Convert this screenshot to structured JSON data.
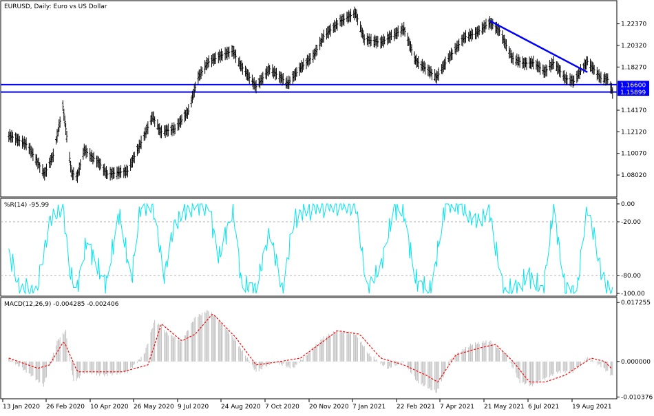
{
  "chart_data": [
    {
      "type": "ohlc",
      "title": "EURUSD, Daily:  Euro vs US Dollar",
      "symbol": "EURUSD",
      "timeframe": "Daily",
      "ylim": [
        1.06,
        1.245
      ],
      "y_ticks": [
        "1.22370",
        "1.20320",
        "1.18270",
        "1.14170",
        "1.12120",
        "1.10070",
        "1.08020"
      ],
      "price_levels": [
        {
          "value": 1.166,
          "label": "1.16600",
          "color": "#0000ff"
        },
        {
          "value": 1.15899,
          "label": "1.15899",
          "color": "#0000ff"
        }
      ],
      "trendline": {
        "from": {
          "x": "2021-05-25",
          "y": 1.2265
        },
        "to": {
          "x": "2021-09-03",
          "y": 1.1778
        },
        "color": "#0000ff"
      },
      "close_path": [
        {
          "x": "2020-01-13",
          "y": 1.118
        },
        {
          "x": "2020-02-01",
          "y": 1.109
        },
        {
          "x": "2020-02-19",
          "y": 1.081
        },
        {
          "x": "2020-02-28",
          "y": 1.099
        },
        {
          "x": "2020-03-09",
          "y": 1.145
        },
        {
          "x": "2020-03-18",
          "y": 1.082
        },
        {
          "x": "2020-03-24",
          "y": 1.079
        },
        {
          "x": "2020-03-31",
          "y": 1.104
        },
        {
          "x": "2020-04-15",
          "y": 1.092
        },
        {
          "x": "2020-04-24",
          "y": 1.081
        },
        {
          "x": "2020-05-15",
          "y": 1.084
        },
        {
          "x": "2020-06-02",
          "y": 1.119
        },
        {
          "x": "2020-06-10",
          "y": 1.136
        },
        {
          "x": "2020-06-18",
          "y": 1.121
        },
        {
          "x": "2020-07-03",
          "y": 1.124
        },
        {
          "x": "2020-07-17",
          "y": 1.141
        },
        {
          "x": "2020-07-27",
          "y": 1.173
        },
        {
          "x": "2020-08-06",
          "y": 1.187
        },
        {
          "x": "2020-08-18",
          "y": 1.193
        },
        {
          "x": "2020-09-01",
          "y": 1.198
        },
        {
          "x": "2020-09-10",
          "y": 1.183
        },
        {
          "x": "2020-09-25",
          "y": 1.164
        },
        {
          "x": "2020-10-09",
          "y": 1.181
        },
        {
          "x": "2020-10-28",
          "y": 1.167
        },
        {
          "x": "2020-11-10",
          "y": 1.182
        },
        {
          "x": "2020-11-24",
          "y": 1.194
        },
        {
          "x": "2020-12-04",
          "y": 1.212
        },
        {
          "x": "2020-12-21",
          "y": 1.226
        },
        {
          "x": "2021-01-06",
          "y": 1.234
        },
        {
          "x": "2021-01-15",
          "y": 1.209
        },
        {
          "x": "2021-02-01",
          "y": 1.206
        },
        {
          "x": "2021-02-12",
          "y": 1.212
        },
        {
          "x": "2021-02-25",
          "y": 1.219
        },
        {
          "x": "2021-03-09",
          "y": 1.189
        },
        {
          "x": "2021-03-31",
          "y": 1.173
        },
        {
          "x": "2021-04-12",
          "y": 1.191
        },
        {
          "x": "2021-04-29",
          "y": 1.211
        },
        {
          "x": "2021-05-11",
          "y": 1.215
        },
        {
          "x": "2021-05-25",
          "y": 1.225
        },
        {
          "x": "2021-06-04",
          "y": 1.217
        },
        {
          "x": "2021-06-17",
          "y": 1.191
        },
        {
          "x": "2021-06-30",
          "y": 1.186
        },
        {
          "x": "2021-07-09",
          "y": 1.187
        },
        {
          "x": "2021-07-21",
          "y": 1.178
        },
        {
          "x": "2021-07-30",
          "y": 1.187
        },
        {
          "x": "2021-08-11",
          "y": 1.172
        },
        {
          "x": "2021-08-20",
          "y": 1.169
        },
        {
          "x": "2021-08-27",
          "y": 1.179
        },
        {
          "x": "2021-09-03",
          "y": 1.188
        },
        {
          "x": "2021-09-17",
          "y": 1.172
        },
        {
          "x": "2021-09-24",
          "y": 1.171
        },
        {
          "x": "2021-09-29",
          "y": 1.159
        }
      ]
    },
    {
      "type": "line",
      "title": "%R(14) -95.99",
      "indicator": "Williams %R",
      "ylim": [
        -100,
        0
      ],
      "y_ticks": [
        "0.00",
        "-20.00",
        "-80.00",
        "-100.00"
      ],
      "level_lines": [
        -20,
        -80
      ],
      "color": "#00e5ee",
      "series": [
        {
          "x": "2020-01-13",
          "y": -55
        },
        {
          "x": "2020-01-24",
          "y": -95
        },
        {
          "x": "2020-02-11",
          "y": -98
        },
        {
          "x": "2020-02-24",
          "y": -20
        },
        {
          "x": "2020-03-09",
          "y": -3
        },
        {
          "x": "2020-03-16",
          "y": -75
        },
        {
          "x": "2020-03-23",
          "y": -97
        },
        {
          "x": "2020-04-03",
          "y": -40
        },
        {
          "x": "2020-04-13",
          "y": -70
        },
        {
          "x": "2020-04-23",
          "y": -90
        },
        {
          "x": "2020-05-06",
          "y": -10
        },
        {
          "x": "2020-05-19",
          "y": -85
        },
        {
          "x": "2020-05-28",
          "y": -5
        },
        {
          "x": "2020-06-10",
          "y": -2
        },
        {
          "x": "2020-06-22",
          "y": -80
        },
        {
          "x": "2020-07-03",
          "y": -20
        },
        {
          "x": "2020-07-21",
          "y": -2
        },
        {
          "x": "2020-08-06",
          "y": -1
        },
        {
          "x": "2020-08-18",
          "y": -60
        },
        {
          "x": "2020-09-01",
          "y": -5
        },
        {
          "x": "2020-09-10",
          "y": -90
        },
        {
          "x": "2020-09-25",
          "y": -95
        },
        {
          "x": "2020-10-09",
          "y": -30
        },
        {
          "x": "2020-10-22",
          "y": -97
        },
        {
          "x": "2020-11-04",
          "y": -15
        },
        {
          "x": "2020-11-20",
          "y": -5
        },
        {
          "x": "2020-12-04",
          "y": -2
        },
        {
          "x": "2020-12-18",
          "y": -1
        },
        {
          "x": "2021-01-06",
          "y": -3
        },
        {
          "x": "2021-01-18",
          "y": -95
        },
        {
          "x": "2021-02-01",
          "y": -70
        },
        {
          "x": "2021-02-15",
          "y": -5
        },
        {
          "x": "2021-02-25",
          "y": -10
        },
        {
          "x": "2021-03-09",
          "y": -85
        },
        {
          "x": "2021-03-25",
          "y": -98
        },
        {
          "x": "2021-04-09",
          "y": -1
        },
        {
          "x": "2021-04-23",
          "y": -2
        },
        {
          "x": "2021-05-10",
          "y": -20
        },
        {
          "x": "2021-05-25",
          "y": -10
        },
        {
          "x": "2021-06-08",
          "y": -98
        },
        {
          "x": "2021-06-21",
          "y": -95
        },
        {
          "x": "2021-07-05",
          "y": -80
        },
        {
          "x": "2021-07-19",
          "y": -98
        },
        {
          "x": "2021-07-30",
          "y": -5
        },
        {
          "x": "2021-08-11",
          "y": -95
        },
        {
          "x": "2021-08-23",
          "y": -98
        },
        {
          "x": "2021-09-03",
          "y": -1
        },
        {
          "x": "2021-09-14",
          "y": -60
        },
        {
          "x": "2021-09-24",
          "y": -99
        },
        {
          "x": "2021-09-29",
          "y": -96
        }
      ]
    },
    {
      "type": "bar_line",
      "title": "MACD(12,26,9) -0.004285 -0.002406",
      "indicator": "MACD(12,26,9)",
      "ylim": [
        -0.0105,
        0.0175
      ],
      "y_ticks": [
        "0.017255",
        "0.000000",
        "-0.010376"
      ],
      "macd_color": "#c0c0c0",
      "signal_color": "#ff0000",
      "macd_histogram": [
        {
          "x": "2020-01-13",
          "y": 0.001
        },
        {
          "x": "2020-02-05",
          "y": -0.004
        },
        {
          "x": "2020-02-18",
          "y": -0.007
        },
        {
          "x": "2020-03-03",
          "y": 0.006
        },
        {
          "x": "2020-03-12",
          "y": 0.009
        },
        {
          "x": "2020-03-20",
          "y": -0.006
        },
        {
          "x": "2020-04-01",
          "y": -0.003
        },
        {
          "x": "2020-04-20",
          "y": -0.004
        },
        {
          "x": "2020-05-15",
          "y": -0.003
        },
        {
          "x": "2020-06-01",
          "y": 0.002
        },
        {
          "x": "2020-06-12",
          "y": 0.012
        },
        {
          "x": "2020-06-26",
          "y": 0.008
        },
        {
          "x": "2020-07-10",
          "y": 0.006
        },
        {
          "x": "2020-07-24",
          "y": 0.013
        },
        {
          "x": "2020-08-07",
          "y": 0.015
        },
        {
          "x": "2020-08-21",
          "y": 0.011
        },
        {
          "x": "2020-09-04",
          "y": 0.006
        },
        {
          "x": "2020-09-25",
          "y": -0.003
        },
        {
          "x": "2020-10-13",
          "y": 0.0
        },
        {
          "x": "2020-11-02",
          "y": -0.002
        },
        {
          "x": "2020-11-20",
          "y": 0.003
        },
        {
          "x": "2020-12-04",
          "y": 0.007
        },
        {
          "x": "2020-12-18",
          "y": 0.009
        },
        {
          "x": "2021-01-06",
          "y": 0.008
        },
        {
          "x": "2021-01-20",
          "y": 0.002
        },
        {
          "x": "2021-02-08",
          "y": -0.002
        },
        {
          "x": "2021-02-25",
          "y": 0.0
        },
        {
          "x": "2021-03-11",
          "y": -0.006
        },
        {
          "x": "2021-03-31",
          "y": -0.009
        },
        {
          "x": "2021-04-15",
          "y": 0.001
        },
        {
          "x": "2021-05-06",
          "y": 0.005
        },
        {
          "x": "2021-05-25",
          "y": 0.006
        },
        {
          "x": "2021-06-11",
          "y": 0.002
        },
        {
          "x": "2021-06-25",
          "y": -0.006
        },
        {
          "x": "2021-07-07",
          "y": -0.007
        },
        {
          "x": "2021-07-21",
          "y": -0.005
        },
        {
          "x": "2021-08-04",
          "y": -0.003
        },
        {
          "x": "2021-08-19",
          "y": -0.003
        },
        {
          "x": "2021-09-03",
          "y": 0.001
        },
        {
          "x": "2021-09-16",
          "y": -0.001
        },
        {
          "x": "2021-09-29",
          "y": -0.004285
        }
      ],
      "signal_line": [
        {
          "x": "2020-01-13",
          "y": 0.001
        },
        {
          "x": "2020-02-12",
          "y": -0.002
        },
        {
          "x": "2020-02-24",
          "y": -0.001
        },
        {
          "x": "2020-03-10",
          "y": 0.006
        },
        {
          "x": "2020-03-24",
          "y": -0.003
        },
        {
          "x": "2020-04-10",
          "y": -0.003
        },
        {
          "x": "2020-05-10",
          "y": -0.003
        },
        {
          "x": "2020-06-05",
          "y": -0.001
        },
        {
          "x": "2020-06-19",
          "y": 0.011
        },
        {
          "x": "2020-07-10",
          "y": 0.006
        },
        {
          "x": "2020-07-24",
          "y": 0.008
        },
        {
          "x": "2020-08-11",
          "y": 0.014
        },
        {
          "x": "2020-09-04",
          "y": 0.007
        },
        {
          "x": "2020-09-25",
          "y": -0.001
        },
        {
          "x": "2020-10-20",
          "y": 0.0
        },
        {
          "x": "2020-11-10",
          "y": 0.001
        },
        {
          "x": "2020-12-04",
          "y": 0.006
        },
        {
          "x": "2020-12-18",
          "y": 0.009
        },
        {
          "x": "2021-01-10",
          "y": 0.008
        },
        {
          "x": "2021-02-01",
          "y": 0.001
        },
        {
          "x": "2021-02-25",
          "y": -0.001
        },
        {
          "x": "2021-03-20",
          "y": -0.004
        },
        {
          "x": "2021-04-01",
          "y": -0.006
        },
        {
          "x": "2021-04-20",
          "y": 0.002
        },
        {
          "x": "2021-05-15",
          "y": 0.004
        },
        {
          "x": "2021-05-31",
          "y": 0.005
        },
        {
          "x": "2021-06-18",
          "y": 0.0
        },
        {
          "x": "2021-07-05",
          "y": -0.006
        },
        {
          "x": "2021-07-21",
          "y": -0.006
        },
        {
          "x": "2021-08-11",
          "y": -0.004
        },
        {
          "x": "2021-08-27",
          "y": -0.001
        },
        {
          "x": "2021-09-07",
          "y": 0.001
        },
        {
          "x": "2021-09-21",
          "y": 0.0
        },
        {
          "x": "2021-09-29",
          "y": -0.002406
        }
      ]
    }
  ],
  "x_axis": {
    "labels": [
      "13 Jan 2020",
      "26 Feb 2020",
      "10 Apr 2020",
      "26 May 2020",
      "9 Jul 2020",
      "24 Aug 2020",
      "7 Oct 2020",
      "20 Nov 2020",
      "7 Jan 2021",
      "22 Feb 2021",
      "7 Apr 2021",
      "21 May 2021",
      "6 Jul 2021",
      "19 Aug 2021"
    ],
    "range": [
      "2020-01-06",
      "2021-10-02"
    ]
  }
}
